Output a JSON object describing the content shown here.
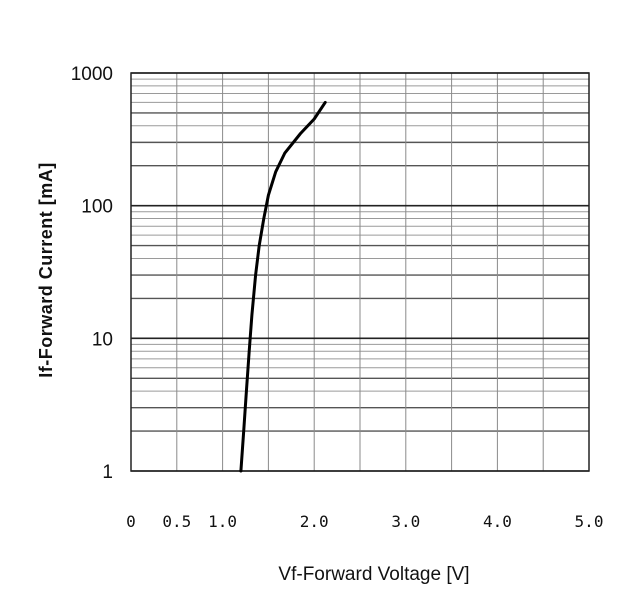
{
  "chart_data": {
    "type": "line",
    "xlabel": "Vf-Forward Voltage [V]",
    "ylabel": "If-Forward Current [mA]",
    "xlim": [
      0,
      5.0
    ],
    "ylim": [
      1,
      1000
    ],
    "y_scale": "log",
    "x_ticks": [
      0,
      0.5,
      1.0,
      1.5,
      2.0,
      2.5,
      3.0,
      3.5,
      4.0,
      4.5,
      5.0
    ],
    "x_tick_labels": [
      "0",
      "0.5",
      "1.0",
      "",
      "2.0",
      "",
      "3.0",
      "",
      "4.0",
      "",
      "5.0"
    ],
    "y_ticks": [
      1,
      10,
      100,
      1000
    ],
    "y_tick_labels": [
      "1",
      "10",
      "100",
      "1000"
    ],
    "grid": true,
    "series": [
      {
        "color": "#000000",
        "x": [
          1.2,
          1.23,
          1.26,
          1.29,
          1.32,
          1.36,
          1.4,
          1.45,
          1.5,
          1.58,
          1.68,
          1.85,
          2.0,
          2.12
        ],
        "y": [
          1,
          2,
          4,
          8,
          15,
          30,
          50,
          80,
          120,
          180,
          250,
          350,
          450,
          600
        ]
      }
    ]
  }
}
